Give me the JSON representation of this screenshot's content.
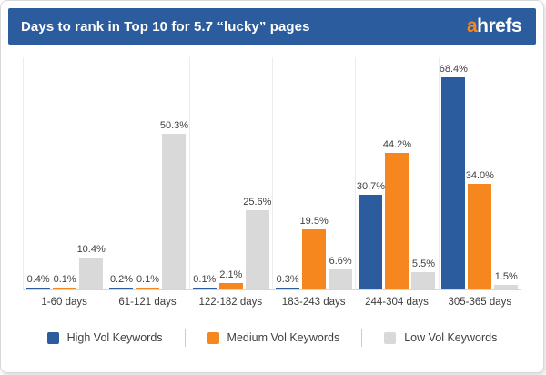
{
  "header": {
    "title": "Days to rank in Top 10 for 5.7 “lucky” pages",
    "logo_a": "a",
    "logo_rest": "hrefs"
  },
  "colors": {
    "header_bg": "#2b5c9d",
    "high_vol": "#2b5c9d",
    "medium_vol": "#f6871f",
    "low_vol": "#d9d9d9",
    "logo_accent": "#f6871f",
    "label_text": "#404040",
    "grid_line": "#ececec",
    "baseline": "#d6d6d6",
    "card_border": "#d8d8d8"
  },
  "chart_data": {
    "type": "bar",
    "title": "Days to rank in Top 10 for 5.7 “lucky” pages",
    "categories": [
      "1-60 days",
      "61-121 days",
      "122-182 days",
      "183-243 days",
      "244-304 days",
      "305-365 days"
    ],
    "series": [
      {
        "name": "High Vol Keywords",
        "color": "#2b5c9d",
        "values": [
          0.4,
          0.2,
          0.1,
          0.3,
          30.7,
          68.4
        ]
      },
      {
        "name": "Medium Vol Keywords",
        "color": "#f6871f",
        "values": [
          0.1,
          0.1,
          2.1,
          19.5,
          44.2,
          34.0
        ]
      },
      {
        "name": "Low Vol Keywords",
        "color": "#d9d9d9",
        "values": [
          10.4,
          50.3,
          25.6,
          6.6,
          5.5,
          1.5
        ]
      }
    ],
    "value_suffix": "%",
    "ylim": [
      0,
      75
    ],
    "grid": "vertical-separators-only",
    "data_labels": "above-bars-one-decimal",
    "legend_position": "bottom-center"
  }
}
